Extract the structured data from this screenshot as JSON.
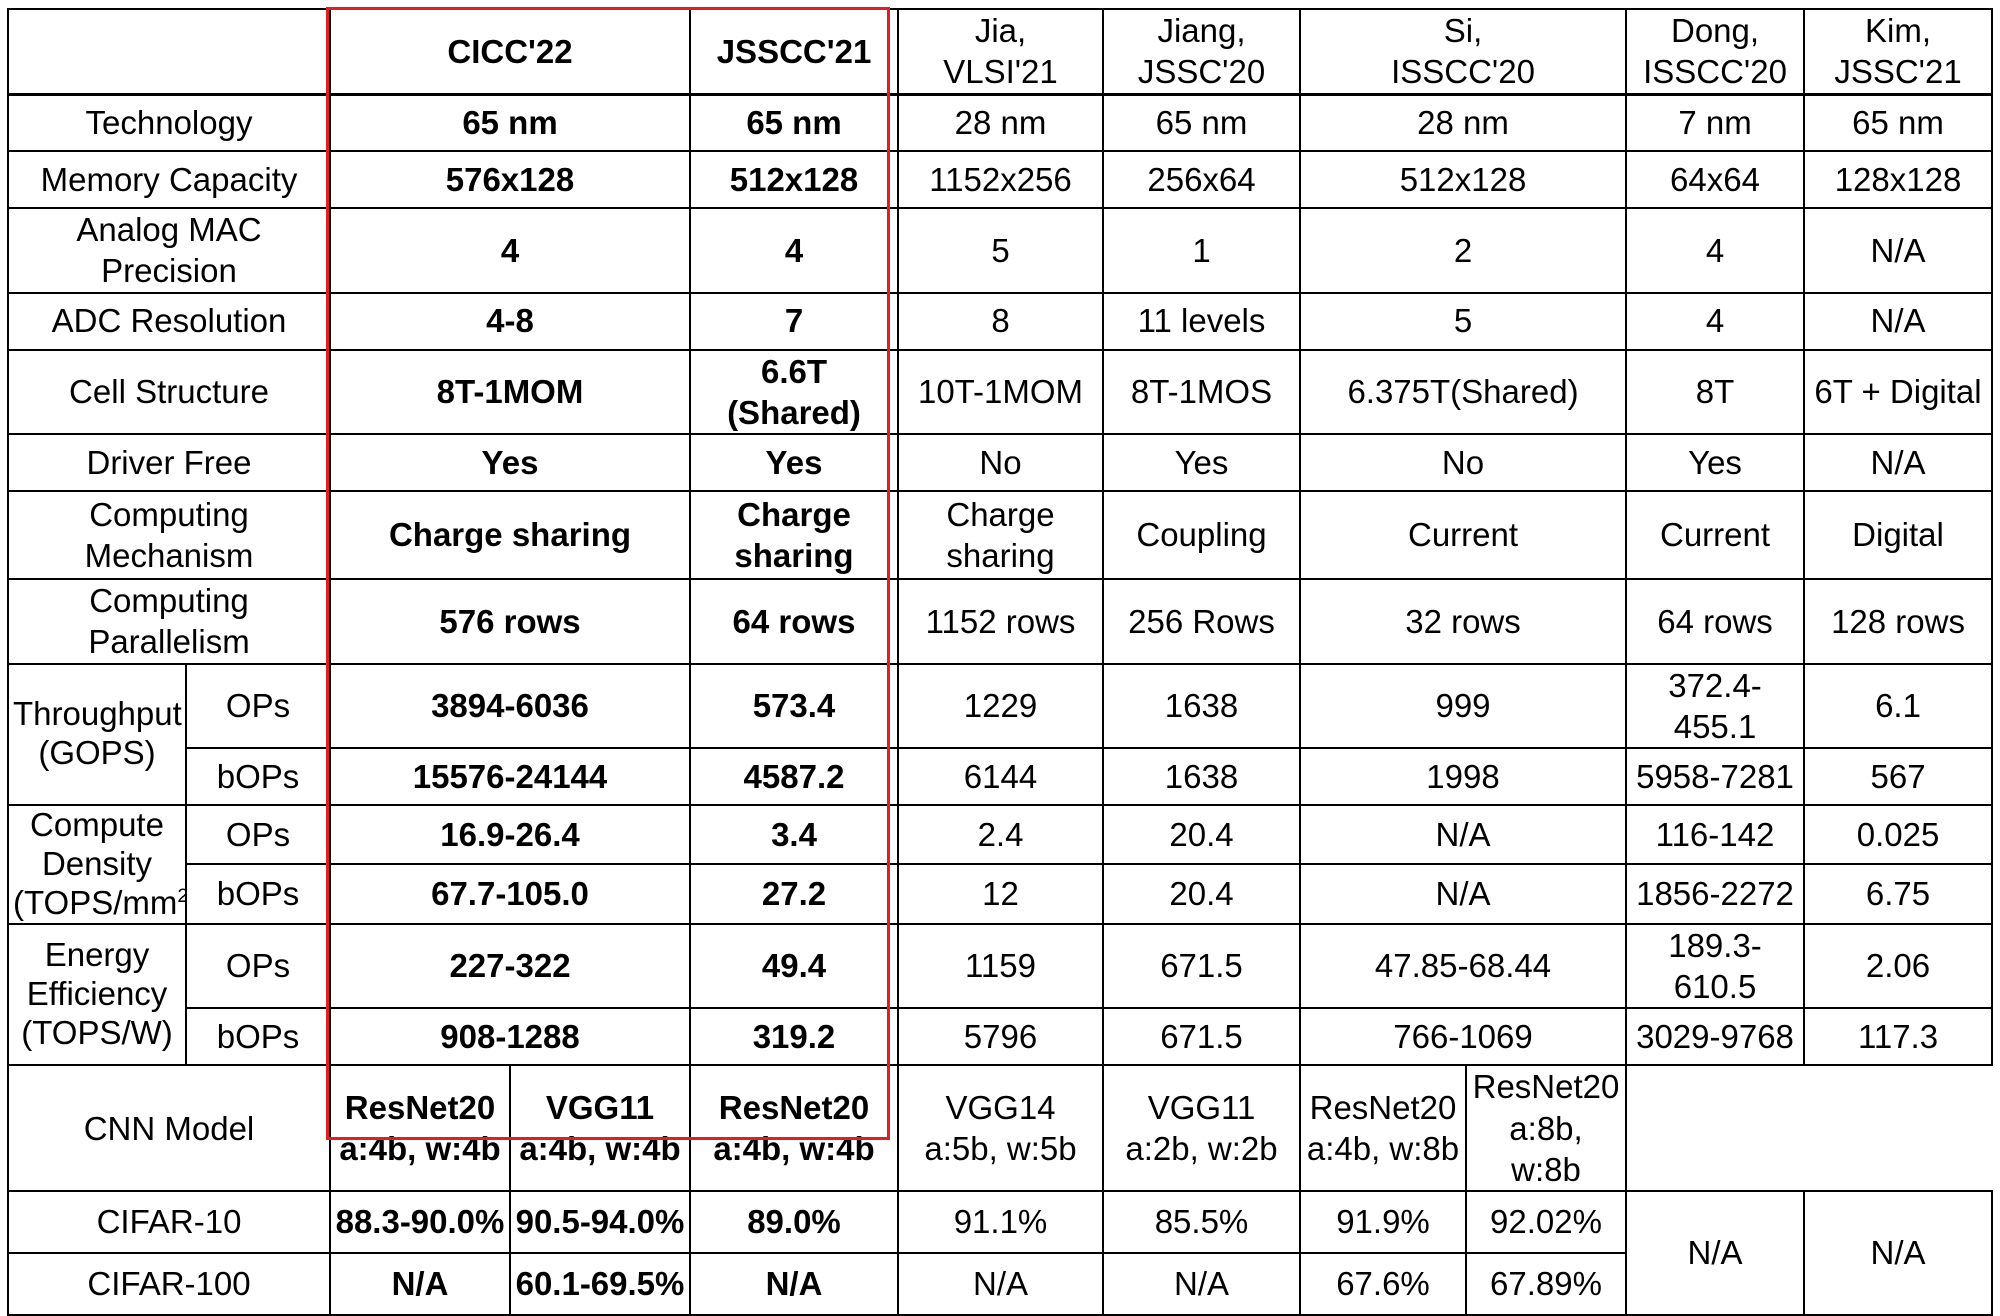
{
  "header": {
    "cicc": "CICC'22",
    "jsscc": "JSSCC'21",
    "jia": "Jia,\nVLSI'21",
    "jiang": "Jiang,\nJSSC'20",
    "si": "Si,\nISSCC'20",
    "dong": "Dong,\nISSCC'20",
    "kim": "Kim,\nJSSC'21"
  },
  "rows": [
    {
      "label": "Technology",
      "cells": [
        "65 nm",
        "65 nm",
        "28 nm",
        "65 nm",
        "28 nm",
        "7 nm",
        "65 nm"
      ]
    },
    {
      "label": "Memory Capacity",
      "cells": [
        "576x128",
        "512x128",
        "1152x256",
        "256x64",
        "512x128",
        "64x64",
        "128x128"
      ]
    },
    {
      "label": "Analog MAC Precision",
      "cells": [
        "4",
        "4",
        "5",
        "1",
        "2",
        "4",
        "N/A"
      ]
    },
    {
      "label": "ADC Resolution",
      "cells": [
        "4-8",
        "7",
        "8",
        "11 levels",
        "5",
        "4",
        "N/A"
      ]
    },
    {
      "label": "Cell Structure",
      "cells": [
        "8T-1MOM",
        "6.6T (Shared)",
        "10T-1MOM",
        "8T-1MOS",
        "6.375T(Shared)",
        "8T",
        "6T + Digital"
      ]
    },
    {
      "label": "Driver Free",
      "cells": [
        "Yes",
        "Yes",
        "No",
        "Yes",
        "No",
        "Yes",
        "N/A"
      ]
    },
    {
      "label": "Computing Mechanism",
      "cells": [
        "Charge sharing",
        "Charge\nsharing",
        "Charge sharing",
        "Coupling",
        "Current",
        "Current",
        "Digital"
      ]
    },
    {
      "label": "Computing Parallelism",
      "cells": [
        "576 rows",
        "64 rows",
        "1152 rows",
        "256 Rows",
        "32 rows",
        "64 rows",
        "128 rows"
      ]
    }
  ],
  "groups": [
    {
      "label": "Throughput\n(GOPS)",
      "subrows": [
        {
          "sub": "OPs",
          "cells": [
            "3894-6036",
            "573.4",
            "1229",
            "1638",
            "999",
            "372.4-455.1",
            "6.1"
          ]
        },
        {
          "sub": "bOPs",
          "cells": [
            "15576-24144",
            "4587.2",
            "6144",
            "1638",
            "1998",
            "5958-7281",
            "567"
          ]
        }
      ]
    },
    {
      "label_pre": "Compute\nDensity\n(TOPS/mm",
      "label_sup": "2",
      "label_post": ")",
      "subrows": [
        {
          "sub": "OPs",
          "cells": [
            "16.9-26.4",
            "3.4",
            "2.4",
            "20.4",
            "N/A",
            "116-142",
            "0.025"
          ]
        },
        {
          "sub": "bOPs",
          "cells": [
            "67.7-105.0",
            "27.2",
            "12",
            "20.4",
            "N/A",
            "1856-2272",
            "6.75"
          ]
        }
      ]
    },
    {
      "label": "Energy\nEfficiency\n(TOPS/W)",
      "subrows": [
        {
          "sub": "OPs",
          "cells": [
            "227-322",
            "49.4",
            "1159",
            "671.5",
            "47.85-68.44",
            "189.3-610.5",
            "2.06"
          ]
        },
        {
          "sub": "bOPs",
          "cells": [
            "908-1288",
            "319.2",
            "5796",
            "671.5",
            "766-1069",
            "3029-9768",
            "117.3"
          ]
        }
      ]
    }
  ],
  "cnn": {
    "label": "CNN Model",
    "models": [
      "ResNet20\na:4b, w:4b",
      "VGG11\na:4b, w:4b",
      "ResNet20\na:4b, w:4b",
      "VGG14\na:5b, w:5b",
      "VGG11\na:2b, w:2b",
      "ResNet20\na:4b, w:8b",
      "ResNet20\na:8b, w:8b"
    ],
    "dong": "N/A",
    "kim": "N/A"
  },
  "cifar10": {
    "label": "CIFAR-10",
    "cells": [
      "88.3-90.0%",
      "90.5-94.0%",
      "89.0%",
      "91.1%",
      "85.5%",
      "91.9%",
      "92.02%"
    ]
  },
  "cifar100": {
    "label": "CIFAR-100",
    "cells": [
      "N/A",
      "60.1-69.5%",
      "N/A",
      "N/A",
      "N/A",
      "67.6%",
      "67.89%"
    ]
  },
  "colors": {
    "highlight_border": "#e02020",
    "grid": "#000000",
    "background": "#ffffff"
  }
}
